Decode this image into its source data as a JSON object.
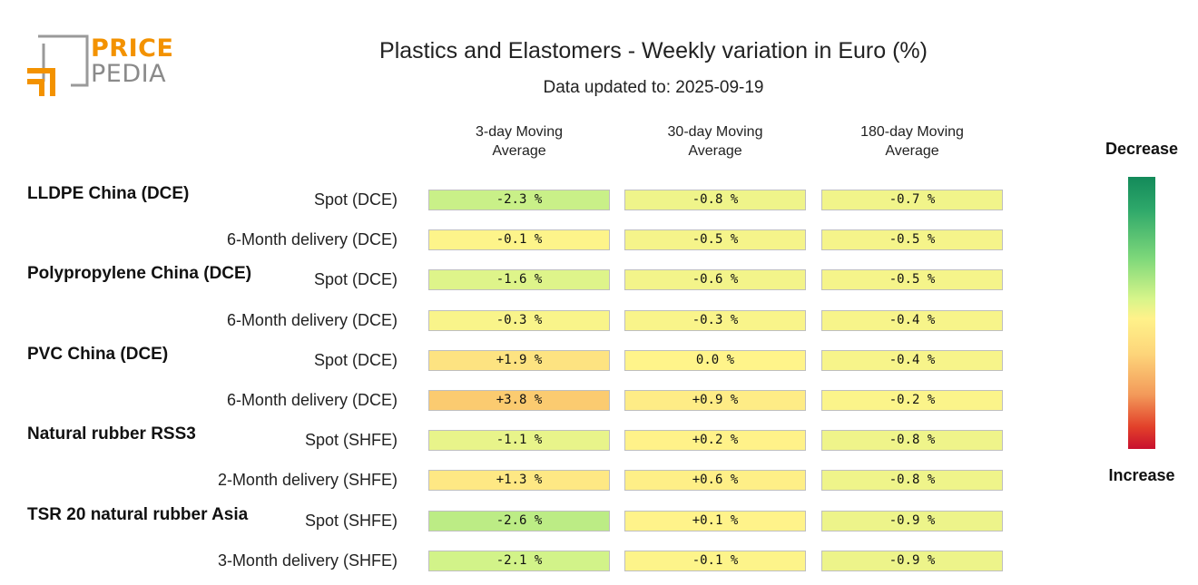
{
  "logo": {
    "top_text": "PRICE",
    "bottom_text": "PEDIA"
  },
  "title": "Plastics and Elastomers - Weekly variation in Euro (%)",
  "subtitle": "Data updated to: 2025-09-19",
  "legend": {
    "top": "Decrease",
    "bottom": "Increase",
    "colors": {
      "decrease": "#138a5a",
      "neutral": "#fff28a",
      "increase": "#c8102e"
    }
  },
  "chart_data": {
    "type": "table",
    "title": "Plastics and Elastomers - Weekly variation in Euro (%)",
    "columns": [
      {
        "line1": "3-day Moving",
        "line2": "Average"
      },
      {
        "line1": "30-day Moving",
        "line2": "Average"
      },
      {
        "line1": "180-day Moving",
        "line2": "Average"
      }
    ],
    "groups": [
      {
        "name": "LLDPE China (DCE)"
      },
      {
        "name": "Polypropylene China (DCE)"
      },
      {
        "name": "PVC China (DCE)"
      },
      {
        "name": "Natural rubber RSS3"
      },
      {
        "name": "TSR 20 natural rubber Asia"
      }
    ],
    "rows": [
      {
        "group": 0,
        "label": "Spot (DCE)",
        "values": [
          -2.3,
          -0.8,
          -0.7
        ],
        "texts": [
          "-2.3 %",
          "-0.8 %",
          "-0.7 %"
        ]
      },
      {
        "group": 0,
        "label": "6-Month delivery (DCE)",
        "values": [
          -0.1,
          -0.5,
          -0.5
        ],
        "texts": [
          "-0.1 %",
          "-0.5 %",
          "-0.5 %"
        ]
      },
      {
        "group": 1,
        "label": "Spot (DCE)",
        "values": [
          -1.6,
          -0.6,
          -0.5
        ],
        "texts": [
          "-1.6 %",
          "-0.6 %",
          "-0.5 %"
        ]
      },
      {
        "group": 1,
        "label": "6-Month delivery (DCE)",
        "values": [
          -0.3,
          -0.3,
          -0.4
        ],
        "texts": [
          "-0.3 %",
          "-0.3 %",
          "-0.4 %"
        ]
      },
      {
        "group": 2,
        "label": "Spot (DCE)",
        "values": [
          1.9,
          0.0,
          -0.4
        ],
        "texts": [
          "+1.9 %",
          "0.0 %",
          "-0.4 %"
        ]
      },
      {
        "group": 2,
        "label": "6-Month delivery (DCE)",
        "values": [
          3.8,
          0.9,
          -0.2
        ],
        "texts": [
          "+3.8 %",
          "+0.9 %",
          "-0.2 %"
        ]
      },
      {
        "group": 3,
        "label": "Spot (SHFE)",
        "values": [
          -1.1,
          0.2,
          -0.8
        ],
        "texts": [
          "-1.1 %",
          "+0.2 %",
          "-0.8 %"
        ]
      },
      {
        "group": 3,
        "label": "2-Month delivery (SHFE)",
        "values": [
          1.3,
          0.6,
          -0.8
        ],
        "texts": [
          "+1.3 %",
          "+0.6 %",
          "-0.8 %"
        ]
      },
      {
        "group": 4,
        "label": "Spot (SHFE)",
        "values": [
          -2.6,
          0.1,
          -0.9
        ],
        "texts": [
          "-2.6 %",
          "+0.1 %",
          "-0.9 %"
        ]
      },
      {
        "group": 4,
        "label": "3-Month delivery (SHFE)",
        "values": [
          -2.1,
          -0.1,
          -0.9
        ],
        "texts": [
          "-2.1 %",
          "-0.1 %",
          "-0.9 %"
        ]
      }
    ]
  }
}
